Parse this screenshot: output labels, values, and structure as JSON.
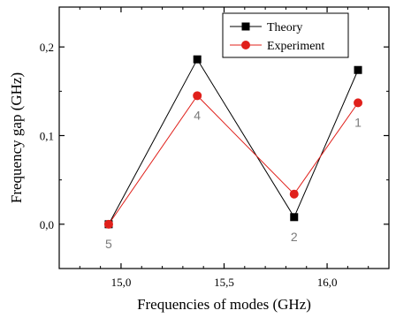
{
  "chart_data": {
    "type": "line",
    "title": "",
    "xlabel": "Frequencies of modes (GHz)",
    "ylabel": "Frequency gap (GHz)",
    "xlim": [
      14.7,
      16.3
    ],
    "ylim": [
      -0.05,
      0.245
    ],
    "x_ticks": [
      15.0,
      15.5,
      16.0
    ],
    "x_tick_labels": [
      "15,0",
      "15,5",
      "16,0"
    ],
    "y_ticks": [
      0.0,
      0.1,
      0.2
    ],
    "y_tick_labels": [
      "0,0",
      "0,1",
      "0,2"
    ],
    "grid": false,
    "legend_position": "top-right",
    "series": [
      {
        "name": "Theory",
        "color": "#000000",
        "marker": "square",
        "x": [
          14.94,
          15.37,
          15.84,
          16.15
        ],
        "y": [
          0.0,
          0.186,
          0.008,
          0.174
        ]
      },
      {
        "name": "Experiment",
        "color": "#e0201b",
        "marker": "circle",
        "x": [
          14.94,
          15.37,
          15.84,
          16.15
        ],
        "y": [
          0.0,
          0.145,
          0.034,
          0.137
        ]
      }
    ],
    "annotations": [
      {
        "text": "5",
        "x": 14.94,
        "y": 0.0,
        "placement": "below"
      },
      {
        "text": "4",
        "x": 15.37,
        "y": 0.145,
        "placement": "below"
      },
      {
        "text": "2",
        "x": 15.84,
        "y": 0.008,
        "placement": "below"
      },
      {
        "text": "1",
        "x": 16.15,
        "y": 0.137,
        "placement": "below"
      }
    ]
  }
}
